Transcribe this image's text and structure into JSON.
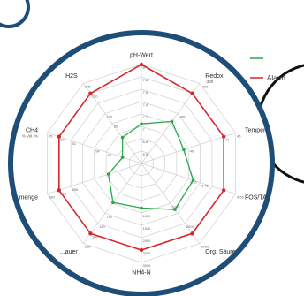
{
  "colors": {
    "ring": "#1e4d78",
    "alarm": "#d7262b",
    "normal": "#2aa84a",
    "grid": "#cfcfcf",
    "badge": "#1e4d78"
  },
  "legend": {
    "normal_label": "",
    "alarm_label": "Alarm"
  },
  "chart_data": {
    "type": "radar",
    "axes": [
      {
        "label": "pH-Wert",
        "sub": "",
        "ticks": [
          "",
          "8",
          "7,8",
          "7,6",
          "7,4",
          "7,2",
          "7",
          "6,8",
          "6,6"
        ]
      },
      {
        "label": "Redox",
        "sub": "-300",
        "ticks": [
          "",
          "-400",
          "",
          "",
          "-450",
          "",
          "",
          "",
          ""
        ]
      },
      {
        "label": "Temperatur",
        "sub": "",
        "ticks": [
          "",
          "45",
          "44",
          "",
          "",
          "40",
          "",
          "",
          ""
        ]
      },
      {
        "label": "FOS/TAC",
        "sub": "",
        "ticks": [
          "",
          "0,55",
          "",
          "",
          "0,45",
          "0,35",
          "",
          "",
          ""
        ]
      },
      {
        "label": "Org. Säuren",
        "sub": "",
        "ticks": [
          "",
          "3000",
          "",
          "2000",
          "",
          "1000",
          "",
          "",
          ""
        ]
      },
      {
        "label": "NH4-N",
        "sub": "",
        "ticks": [
          "",
          "3000",
          "2500",
          "2000",
          "1500",
          "1000",
          "",
          "",
          ""
        ]
      },
      {
        "label": "...auer",
        "sub": "",
        "ticks": [
          "",
          "180",
          "160",
          "140",
          "120",
          "",
          "",
          "",
          ""
        ]
      },
      {
        "label": "...menge",
        "sub": "",
        "ticks": [
          "",
          "280",
          "240",
          "200",
          "",
          "",
          "",
          "",
          ""
        ]
      },
      {
        "label": "CH4",
        "sub": "% Vol.-%",
        "ticks": [
          "",
          "45",
          "50",
          "51",
          "",
          "54",
          "58",
          "",
          ""
        ]
      },
      {
        "label": "H2S",
        "sub": "",
        "ticks": [
          "",
          "175",
          "150",
          "",
          "100",
          "50",
          "",
          "",
          ""
        ]
      }
    ],
    "rings": 8,
    "series": [
      {
        "name": "Alarm",
        "values": [
          8,
          7,
          7,
          7,
          7,
          7,
          7,
          7,
          7,
          7
        ]
      },
      {
        "values": [
          3.2,
          4.2,
          3.6,
          4.4,
          4.6,
          3.6,
          3.9,
          2.8,
          1.6,
          2.6
        ]
      }
    ]
  }
}
